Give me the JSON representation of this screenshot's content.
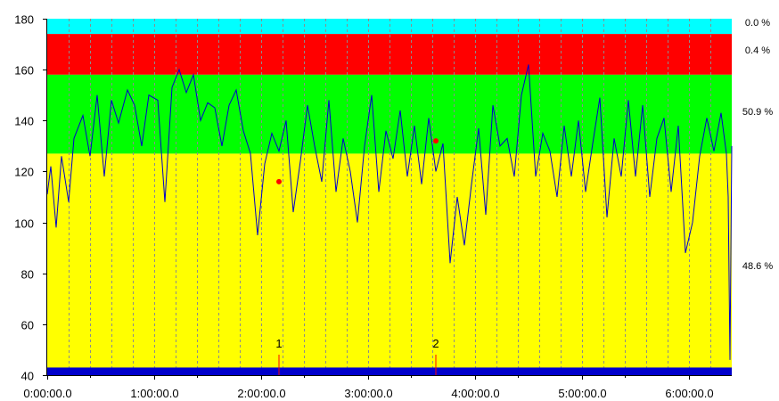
{
  "chart_data": {
    "type": "line",
    "title": "",
    "xlabel": "",
    "ylabel": "",
    "xlim_seconds": [
      0,
      23040
    ],
    "ylim": [
      40,
      180
    ],
    "y_ticks": [
      40,
      60,
      80,
      100,
      120,
      140,
      160,
      180
    ],
    "x_tick_labels": [
      "0:00:00.0",
      "1:00:00.0",
      "2:00:00.0",
      "3:00:00.0",
      "4:00:00.0",
      "5:00:00.0",
      "6:00:00.0"
    ],
    "x_tick_seconds": [
      0,
      3600,
      7200,
      10800,
      14400,
      18000,
      21600
    ],
    "grid": "vertical dashed every 0:12:00",
    "zones": [
      {
        "from": 174,
        "to": 180,
        "color": "#00ffff",
        "percent": "0.0 %"
      },
      {
        "from": 158,
        "to": 174,
        "color": "#ff0000",
        "percent": "0.4 %"
      },
      {
        "from": 127,
        "to": 158,
        "color": "#00ff00",
        "percent": "50.9 %"
      },
      {
        "from": 40,
        "to": 127,
        "color": "#ffff00",
        "percent": "48.6 %"
      }
    ],
    "baseline": {
      "from": 40,
      "to": 43,
      "color": "#0000cc"
    },
    "series": [
      {
        "color": "#0000cc",
        "points_seconds": [
          0,
          111,
          120,
          122,
          300,
          98,
          480,
          126,
          720,
          108,
          900,
          133,
          1200,
          142,
          1440,
          126,
          1680,
          150,
          1920,
          118,
          2160,
          148,
          2400,
          139,
          2700,
          152,
          2940,
          146,
          3180,
          130,
          3420,
          150,
          3720,
          148,
          3960,
          108,
          4200,
          153,
          4440,
          160,
          4680,
          151,
          4920,
          158,
          5160,
          140,
          5400,
          147,
          5640,
          145,
          5880,
          130,
          6120,
          146,
          6360,
          152,
          6600,
          136,
          6840,
          127,
          7080,
          95,
          7320,
          123,
          7560,
          135,
          7800,
          128,
          8040,
          140,
          8280,
          104,
          8520,
          124,
          8760,
          146,
          9000,
          130,
          9240,
          116,
          9480,
          148,
          9720,
          112,
          9960,
          133,
          10200,
          120,
          10440,
          100,
          10680,
          130,
          10920,
          150,
          11160,
          112,
          11400,
          136,
          11640,
          125,
          11880,
          144,
          12120,
          118,
          12360,
          138,
          12600,
          115,
          12840,
          141,
          13080,
          120,
          13320,
          131,
          13560,
          84,
          13800,
          110,
          14040,
          91,
          14280,
          115,
          14520,
          137,
          14760,
          103,
          15000,
          146,
          15240,
          130,
          15480,
          133,
          15720,
          118,
          15960,
          150,
          16200,
          162,
          16440,
          118,
          16680,
          135,
          16920,
          128,
          17160,
          110,
          17400,
          138,
          17640,
          118,
          17880,
          140,
          18120,
          112,
          18360,
          131,
          18600,
          149,
          18840,
          102,
          19080,
          133,
          19320,
          118,
          19560,
          148,
          19800,
          118,
          20040,
          146,
          20280,
          110,
          20520,
          133,
          20760,
          141,
          21000,
          112,
          21240,
          138,
          21480,
          88,
          21720,
          100,
          21960,
          126,
          22200,
          141,
          22440,
          128,
          22680,
          143,
          22860,
          127,
          22920,
          110,
          22980,
          46,
          23040,
          130
        ]
      }
    ],
    "markers": [
      {
        "label": "1",
        "x_seconds": 7800,
        "y": 116,
        "color": "#ff0000"
      },
      {
        "label": "2",
        "x_seconds": 13080,
        "y": 132,
        "color": "#ff0000"
      }
    ]
  }
}
